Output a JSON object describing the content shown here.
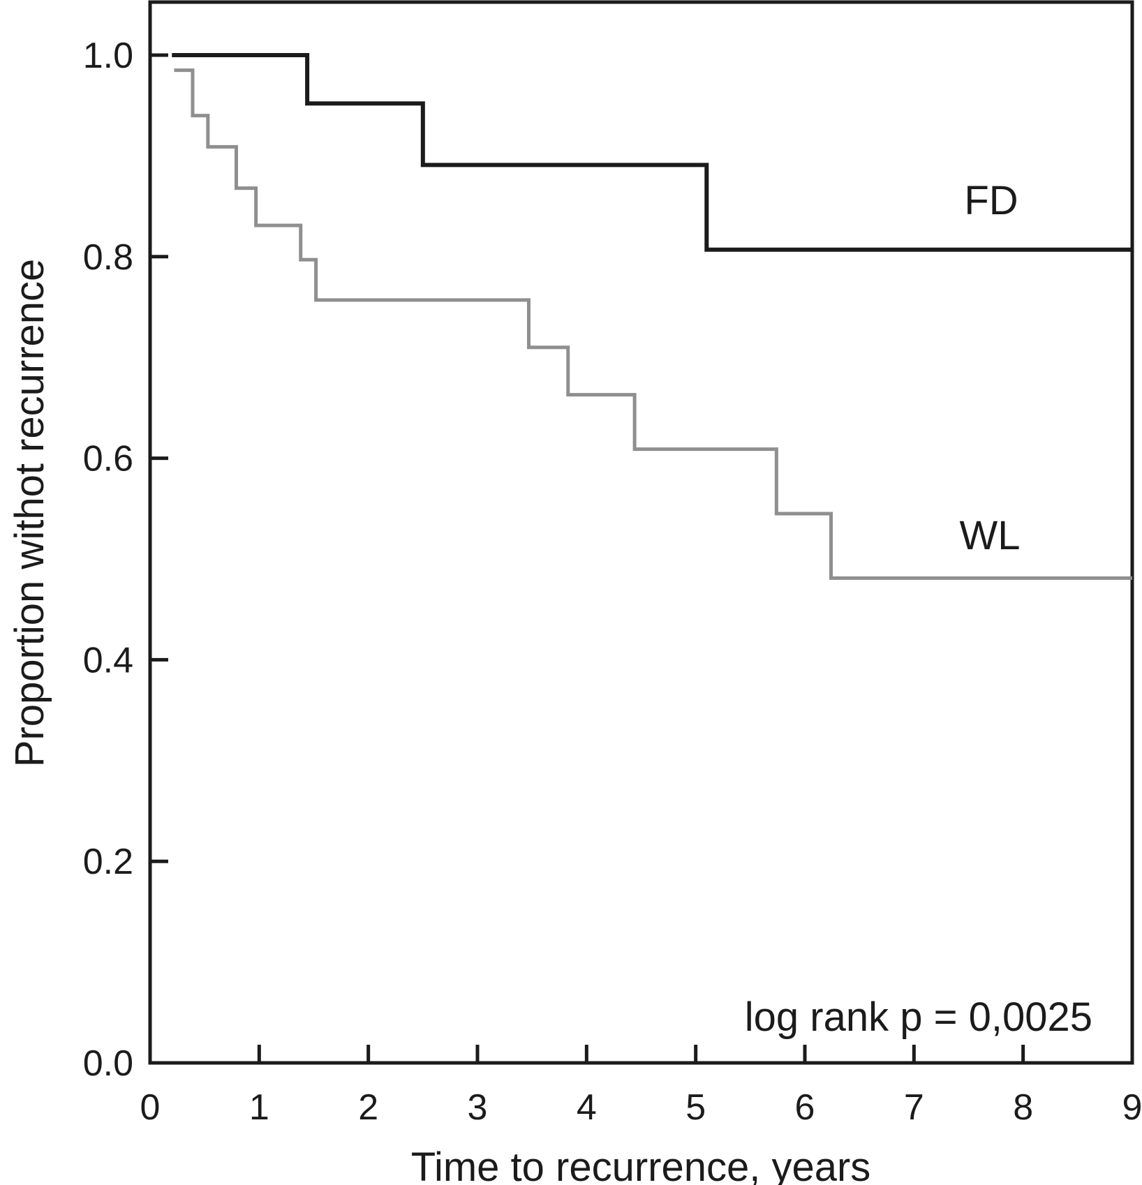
{
  "figure": {
    "background": "#ffffff",
    "description": "Kaplan-Meier plot of time to recurrence for two groups (FD and WL)"
  },
  "chart_data": {
    "type": "line",
    "variant": "kaplan-meier-step",
    "title": "",
    "xlabel": "Time to recurrence, years",
    "ylabel": "Proportion withot recurrence",
    "xlim": [
      0,
      9
    ],
    "ylim": [
      0,
      1.05
    ],
    "grid": false,
    "legend_position": "inline-curve-labels",
    "x_ticks": [
      0,
      1,
      2,
      3,
      4,
      5,
      6,
      7,
      8,
      9
    ],
    "x_tick_labels": [
      "0",
      "1",
      "2",
      "3",
      "4",
      "5",
      "6",
      "7",
      "8",
      "9"
    ],
    "y_ticks": [
      0.0,
      0.2,
      0.4,
      0.6,
      0.8,
      1.0
    ],
    "y_tick_labels": [
      "0.0",
      "0.2",
      "0.4",
      "0.6",
      "0.8",
      "1.0"
    ],
    "annotation": "log rank p = 0,0025",
    "series": [
      {
        "name": "FD",
        "color": "#1b1b1b",
        "line_width": 6,
        "end_time": 9,
        "steps": [
          [
            0.2,
            1.0
          ],
          [
            1.44,
            0.952
          ],
          [
            2.5,
            0.891
          ],
          [
            5.1,
            0.807
          ]
        ]
      },
      {
        "name": "WL",
        "color": "#8f8f8f",
        "line_width": 5,
        "end_time": 9,
        "steps": [
          [
            0.22,
            0.985
          ],
          [
            0.39,
            0.94
          ],
          [
            0.53,
            0.909
          ],
          [
            0.79,
            0.868
          ],
          [
            0.97,
            0.831
          ],
          [
            1.38,
            0.797
          ],
          [
            1.52,
            0.757
          ],
          [
            3.47,
            0.71
          ],
          [
            3.83,
            0.663
          ],
          [
            4.44,
            0.609
          ],
          [
            5.74,
            0.545
          ],
          [
            6.24,
            0.481
          ]
        ]
      }
    ]
  }
}
